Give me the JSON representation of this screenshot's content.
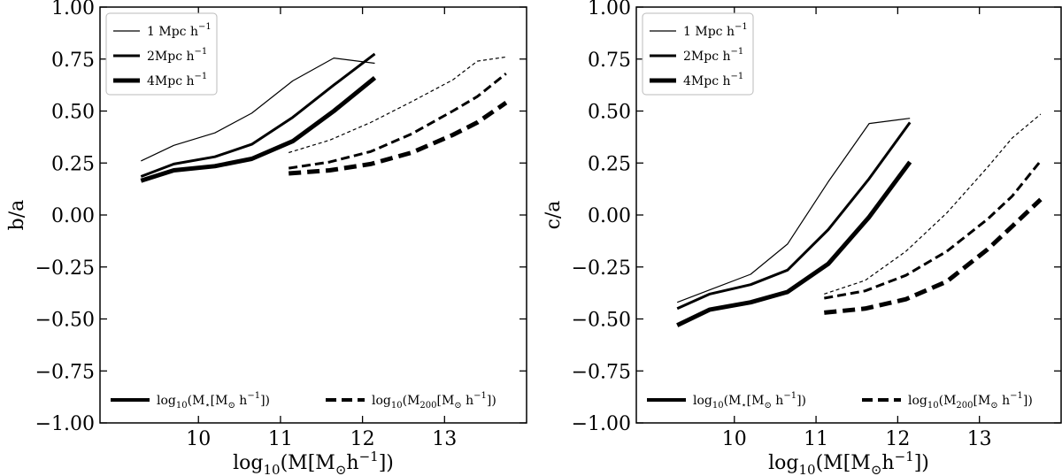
{
  "chart_data": [
    {
      "type": "line",
      "panel": "left",
      "xlabel": "log10(M[M⊙h−1])",
      "ylabel": "b/a",
      "xlim": [
        8.8,
        14.0
      ],
      "ylim": [
        -1.0,
        1.0
      ],
      "xticks": [
        10,
        11,
        12,
        13
      ],
      "xtick_labels": [
        "10",
        "11",
        "12",
        "13"
      ],
      "yticks": [
        1.0,
        0.75,
        0.5,
        0.25,
        0.0,
        -0.25,
        -0.5,
        -0.75,
        -1.0
      ],
      "ytick_labels": [
        "1.00",
        "0.75",
        "0.50",
        "0.25",
        "0.00",
        "−0.25",
        "−0.50",
        "−0.75",
        "−1.00"
      ],
      "legend_top": [
        "1 Mpc h−1",
        "2Mpc h−1",
        "4Mpc h−1"
      ],
      "legend_bottom": [
        "log10(M⋆[M⊙ h−1])",
        "log10(M200[M⊙ h−1])"
      ],
      "series": [
        {
          "name": "1 Mpc h−1, stellar mass",
          "style": "solid",
          "width": 1.2,
          "x": [
            9.3,
            9.7,
            10.2,
            10.65,
            11.15,
            11.65,
            12.15
          ],
          "y": [
            0.26,
            0.335,
            0.395,
            0.49,
            0.645,
            0.755,
            0.73
          ]
        },
        {
          "name": "2Mpc h−1, stellar mass",
          "style": "solid",
          "width": 3,
          "x": [
            9.3,
            9.7,
            10.2,
            10.65,
            11.15,
            11.65,
            12.15
          ],
          "y": [
            0.185,
            0.245,
            0.28,
            0.34,
            0.47,
            0.625,
            0.775
          ]
        },
        {
          "name": "4Mpc h−1, stellar mass",
          "style": "solid",
          "width": 5,
          "x": [
            9.3,
            9.7,
            10.2,
            10.65,
            11.15,
            11.65,
            12.15
          ],
          "y": [
            0.165,
            0.215,
            0.235,
            0.27,
            0.355,
            0.5,
            0.66
          ]
        },
        {
          "name": "1 Mpc h−1, halo mass",
          "style": "dashed",
          "width": 1.2,
          "x": [
            11.1,
            11.6,
            12.1,
            12.6,
            13.1,
            13.4,
            13.75
          ],
          "y": [
            0.3,
            0.36,
            0.445,
            0.545,
            0.65,
            0.74,
            0.76
          ]
        },
        {
          "name": "2Mpc h−1, halo mass",
          "style": "dashed",
          "width": 3,
          "x": [
            11.1,
            11.6,
            12.1,
            12.6,
            13.1,
            13.4,
            13.75
          ],
          "y": [
            0.225,
            0.255,
            0.305,
            0.39,
            0.5,
            0.57,
            0.68
          ]
        },
        {
          "name": "4Mpc h−1, halo mass",
          "style": "dashed",
          "width": 5,
          "x": [
            11.1,
            11.6,
            12.1,
            12.6,
            13.1,
            13.4,
            13.75
          ],
          "y": [
            0.2,
            0.215,
            0.245,
            0.3,
            0.385,
            0.445,
            0.54
          ]
        }
      ]
    },
    {
      "type": "line",
      "panel": "right",
      "xlabel": "log10(M[M⊙h−1])",
      "ylabel": "c/a",
      "xlim": [
        8.8,
        14.0
      ],
      "ylim": [
        -1.0,
        1.0
      ],
      "xticks": [
        10,
        11,
        12,
        13
      ],
      "xtick_labels": [
        "10",
        "11",
        "12",
        "13"
      ],
      "yticks": [
        1.0,
        0.75,
        0.5,
        0.25,
        0.0,
        -0.25,
        -0.5,
        -0.75,
        -1.0
      ],
      "ytick_labels": [
        "1.00",
        "0.75",
        "0.50",
        "0.25",
        "0.00",
        "−0.25",
        "−0.50",
        "−0.75",
        "−1.00"
      ],
      "legend_top": [
        "1 Mpc h−1",
        "2Mpc h−1",
        "4Mpc h−1"
      ],
      "legend_bottom": [
        "log10(M⋆[M⊙ h−1])",
        "log10(M200[M⊙ h−1])"
      ],
      "series": [
        {
          "name": "1 Mpc h−1, stellar mass",
          "style": "solid",
          "width": 1.2,
          "x": [
            9.3,
            9.7,
            10.2,
            10.65,
            11.15,
            11.65,
            12.15
          ],
          "y": [
            -0.42,
            -0.36,
            -0.285,
            -0.14,
            0.16,
            0.44,
            0.465
          ]
        },
        {
          "name": "2Mpc h−1, stellar mass",
          "style": "solid",
          "width": 3,
          "x": [
            9.3,
            9.7,
            10.2,
            10.65,
            11.15,
            11.65,
            12.15
          ],
          "y": [
            -0.45,
            -0.38,
            -0.335,
            -0.265,
            -0.07,
            0.175,
            0.445
          ]
        },
        {
          "name": "4Mpc h−1, stellar mass",
          "style": "solid",
          "width": 5,
          "x": [
            9.3,
            9.7,
            10.2,
            10.65,
            11.15,
            11.65,
            12.15
          ],
          "y": [
            -0.53,
            -0.455,
            -0.42,
            -0.37,
            -0.235,
            -0.01,
            0.255
          ]
        },
        {
          "name": "1 Mpc h−1, halo mass",
          "style": "dashed",
          "width": 1.2,
          "x": [
            11.1,
            11.6,
            12.1,
            12.6,
            13.1,
            13.4,
            13.75
          ],
          "y": [
            -0.38,
            -0.315,
            -0.175,
            0.01,
            0.23,
            0.37,
            0.485
          ]
        },
        {
          "name": "2Mpc h−1, halo mass",
          "style": "dashed",
          "width": 3,
          "x": [
            11.1,
            11.6,
            12.1,
            12.6,
            13.1,
            13.4,
            13.75
          ],
          "y": [
            -0.4,
            -0.365,
            -0.29,
            -0.175,
            -0.02,
            0.09,
            0.26
          ]
        },
        {
          "name": "4Mpc h−1, halo mass",
          "style": "dashed",
          "width": 5,
          "x": [
            11.1,
            11.6,
            12.1,
            12.6,
            13.1,
            13.4,
            13.75
          ],
          "y": [
            -0.47,
            -0.45,
            -0.405,
            -0.32,
            -0.165,
            -0.055,
            0.075
          ]
        }
      ]
    }
  ]
}
